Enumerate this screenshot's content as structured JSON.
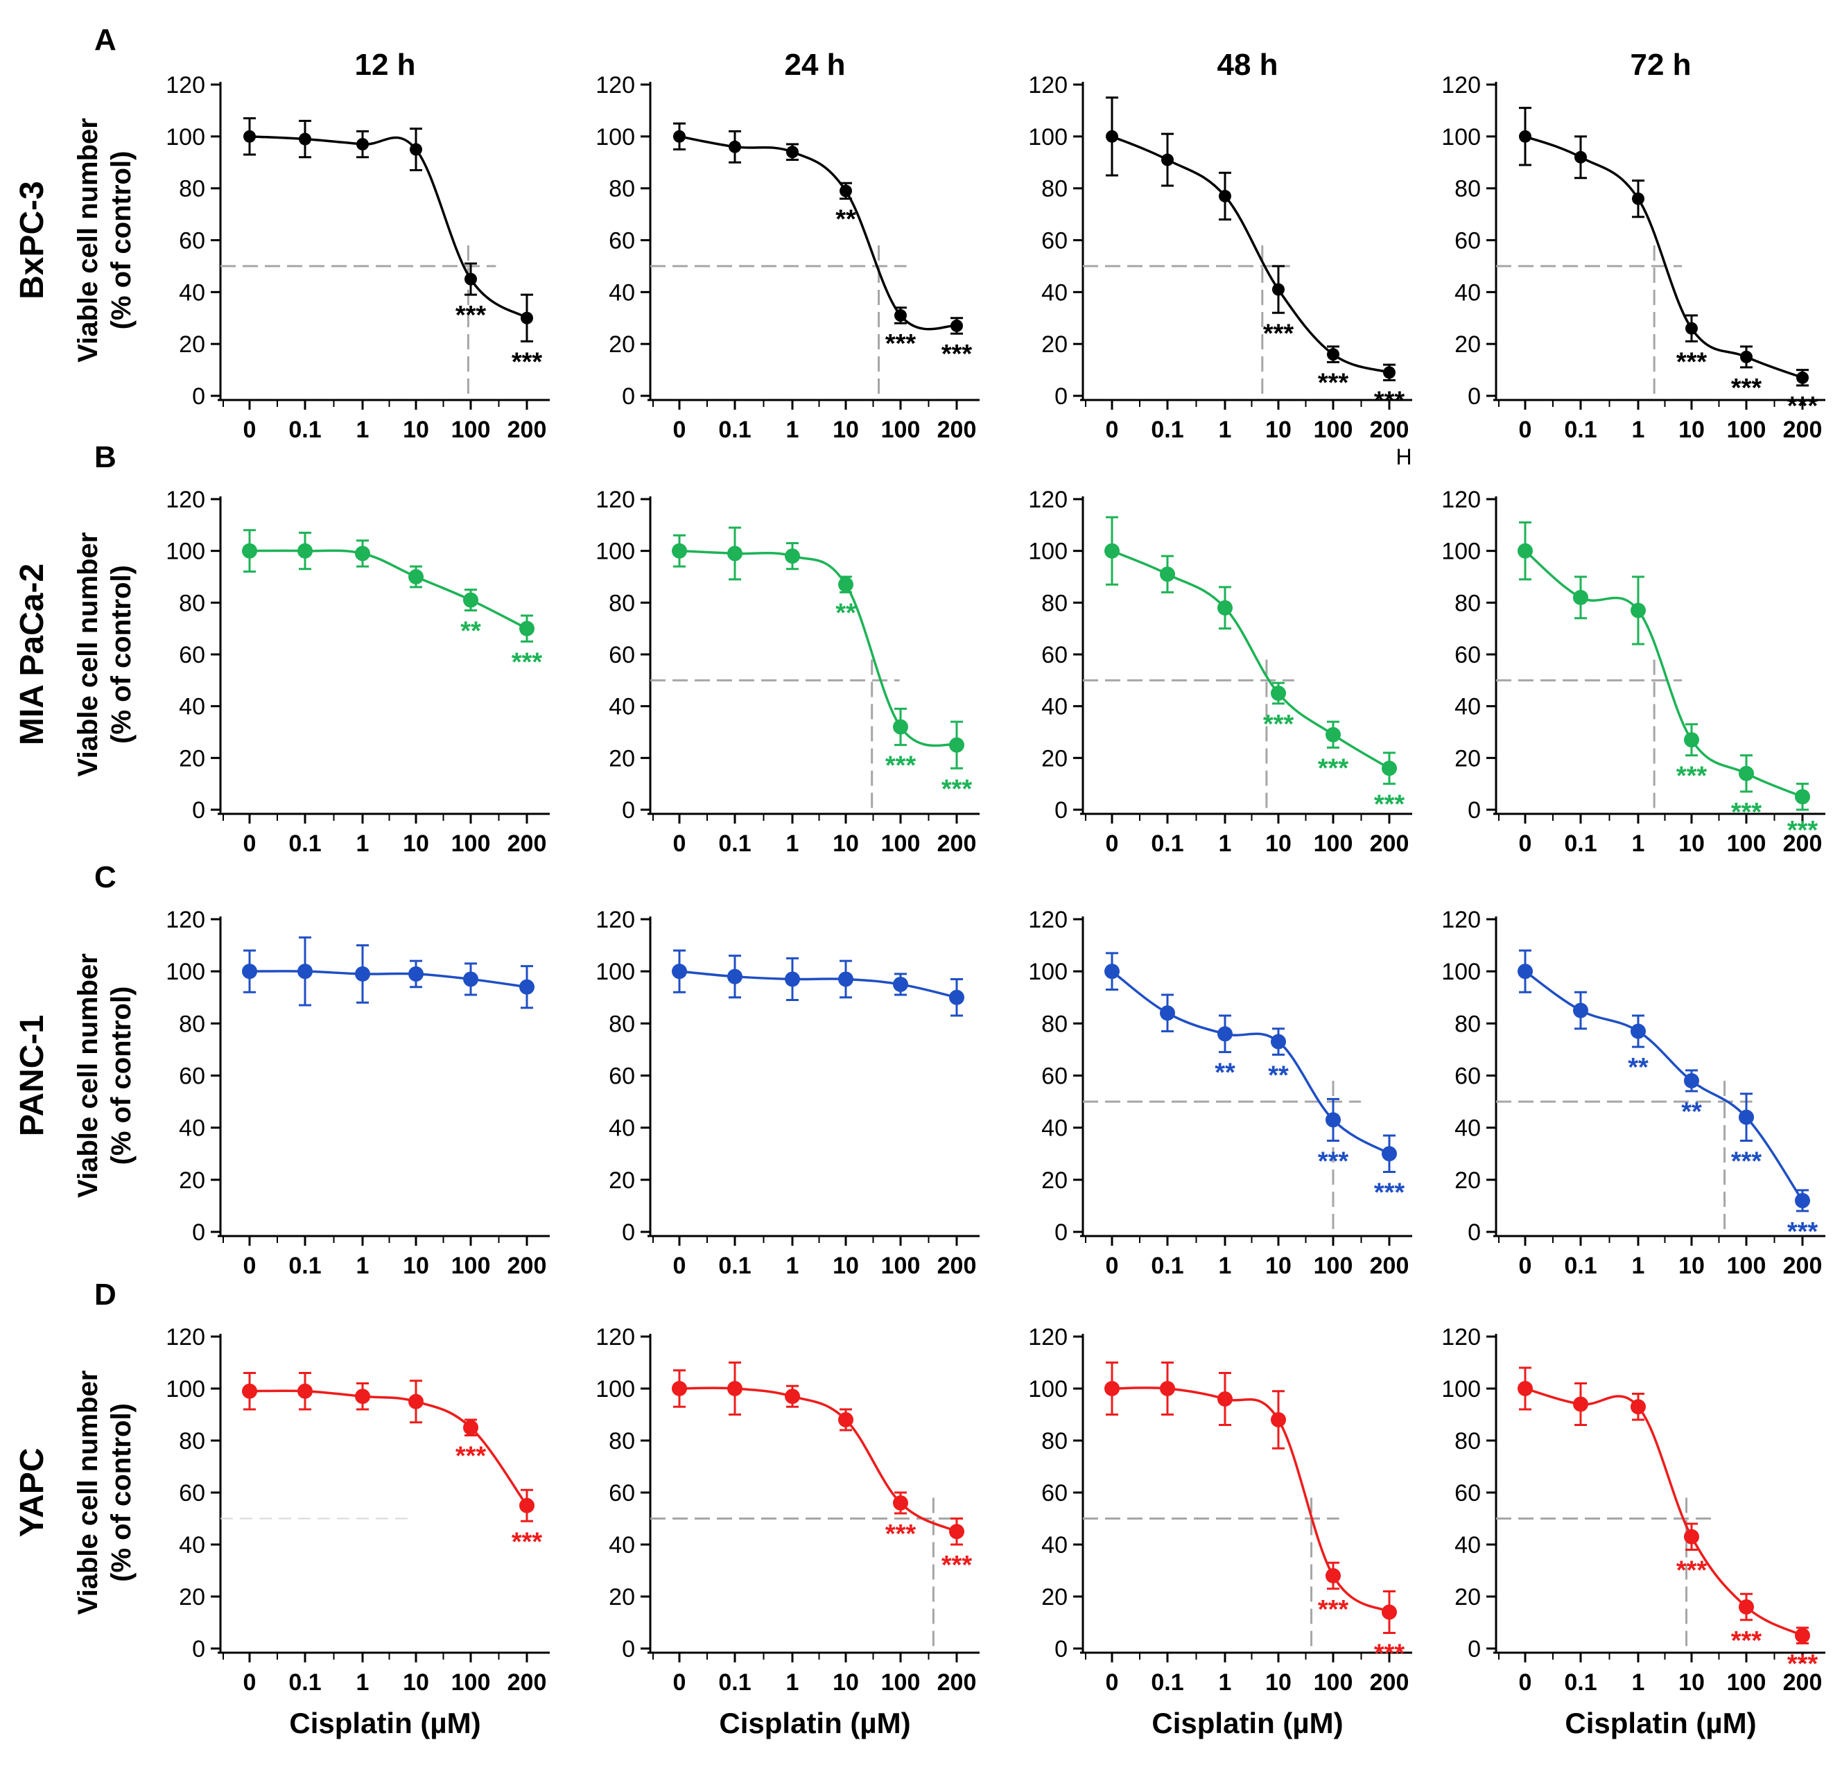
{
  "figure": {
    "x_tick_labels": [
      "0",
      "0.1",
      "1",
      "10",
      "100",
      "200"
    ],
    "y_ticks": [
      0,
      20,
      40,
      60,
      80,
      100,
      120
    ],
    "y_axis_label_line1": "Viable cell number",
    "y_axis_label_line2": "(% of control)",
    "x_axis_label": "Cisplatin (µM)",
    "stray_label": "H",
    "time_points": [
      "12 h",
      "24 h",
      "48 h",
      "72 h"
    ],
    "colors": {
      "BxPC-3": "#000000",
      "MIA PaCa-2": "#1db356",
      "PANC-1": "#1f4fc4",
      "YAPC": "#ee1c1c",
      "reference_line": "#a6a6a6"
    }
  },
  "chart_data": [
    {
      "type": "line",
      "panel": "A",
      "row_label": "BxPC-3",
      "title": "12 h",
      "color": "#000000",
      "categories": [
        "0",
        "0.1",
        "1",
        "10",
        "100",
        "200"
      ],
      "values": [
        100,
        99,
        97,
        95,
        45,
        30
      ],
      "errors": [
        7,
        7,
        5,
        8,
        6,
        9
      ],
      "significance": [
        "",
        "",
        "",
        "",
        "***",
        "***"
      ],
      "ic50_x": 90,
      "xlabel": "",
      "ylabel": "Viable cell number (% of control)",
      "ylim": [
        0,
        120
      ]
    },
    {
      "type": "line",
      "panel": "A",
      "row_label": "BxPC-3",
      "title": "24 h",
      "color": "#000000",
      "categories": [
        "0",
        "0.1",
        "1",
        "10",
        "100",
        "200"
      ],
      "values": [
        100,
        96,
        94,
        79,
        31,
        27
      ],
      "errors": [
        5,
        6,
        3,
        3,
        3,
        3
      ],
      "significance": [
        "",
        "",
        "",
        "**",
        "***",
        "***"
      ],
      "ic50_x": 40,
      "xlabel": "",
      "ylabel": "",
      "ylim": [
        0,
        120
      ]
    },
    {
      "type": "line",
      "panel": "A",
      "row_label": "BxPC-3",
      "title": "48 h",
      "color": "#000000",
      "categories": [
        "0",
        "0.1",
        "1",
        "10",
        "100",
        "200"
      ],
      "values": [
        100,
        91,
        77,
        41,
        16,
        9
      ],
      "errors": [
        15,
        10,
        9,
        9,
        3,
        3
      ],
      "significance": [
        "",
        "",
        "",
        "***",
        "***",
        "***"
      ],
      "ic50_x": 5,
      "xlabel": "",
      "ylabel": "",
      "ylim": [
        0,
        120
      ]
    },
    {
      "type": "line",
      "panel": "A",
      "row_label": "BxPC-3",
      "title": "72 h",
      "color": "#000000",
      "categories": [
        "0",
        "0.1",
        "1",
        "10",
        "100",
        "200"
      ],
      "values": [
        100,
        92,
        76,
        26,
        15,
        7
      ],
      "errors": [
        11,
        8,
        7,
        5,
        4,
        3
      ],
      "significance": [
        "",
        "",
        "",
        "***",
        "***",
        "***"
      ],
      "ic50_x": 2,
      "xlabel": "",
      "ylabel": "",
      "ylim": [
        0,
        120
      ]
    },
    {
      "type": "line",
      "panel": "B",
      "row_label": "MIA PaCa-2",
      "title": "",
      "color": "#1db356",
      "categories": [
        "0",
        "0.1",
        "1",
        "10",
        "100",
        "200"
      ],
      "values": [
        100,
        100,
        99,
        90,
        81,
        70
      ],
      "errors": [
        8,
        7,
        5,
        4,
        4,
        5
      ],
      "significance": [
        "",
        "",
        "",
        "",
        "**",
        "***"
      ],
      "ic50_x": null,
      "xlabel": "",
      "ylabel": "Viable cell number (% of control)",
      "ylim": [
        0,
        120
      ]
    },
    {
      "type": "line",
      "panel": "B",
      "row_label": "MIA PaCa-2",
      "title": "",
      "color": "#1db356",
      "categories": [
        "0",
        "0.1",
        "1",
        "10",
        "100",
        "200"
      ],
      "values": [
        100,
        99,
        98,
        87,
        32,
        25
      ],
      "errors": [
        6,
        10,
        5,
        3,
        7,
        9
      ],
      "significance": [
        "",
        "",
        "",
        "**",
        "***",
        "***"
      ],
      "ic50_x": 30,
      "xlabel": "",
      "ylabel": "",
      "ylim": [
        0,
        120
      ]
    },
    {
      "type": "line",
      "panel": "B",
      "row_label": "MIA PaCa-2",
      "title": "",
      "color": "#1db356",
      "categories": [
        "0",
        "0.1",
        "1",
        "10",
        "100",
        "200"
      ],
      "values": [
        100,
        91,
        78,
        45,
        29,
        16
      ],
      "errors": [
        13,
        7,
        8,
        4,
        5,
        6
      ],
      "significance": [
        "",
        "",
        "",
        "***",
        "***",
        "***"
      ],
      "ic50_x": 6,
      "xlabel": "",
      "ylabel": "",
      "ylim": [
        0,
        120
      ]
    },
    {
      "type": "line",
      "panel": "B",
      "row_label": "MIA PaCa-2",
      "title": "",
      "color": "#1db356",
      "categories": [
        "0",
        "0.1",
        "1",
        "10",
        "100",
        "200"
      ],
      "values": [
        100,
        82,
        77,
        27,
        14,
        5
      ],
      "errors": [
        11,
        8,
        13,
        6,
        7,
        5
      ],
      "significance": [
        "",
        "",
        "",
        "***",
        "***",
        "***"
      ],
      "ic50_x": 2,
      "xlabel": "",
      "ylabel": "",
      "ylim": [
        0,
        120
      ]
    },
    {
      "type": "line",
      "panel": "C",
      "row_label": "PANC-1",
      "title": "",
      "color": "#1f4fc4",
      "categories": [
        "0",
        "0.1",
        "1",
        "10",
        "100",
        "200"
      ],
      "values": [
        100,
        100,
        99,
        99,
        97,
        94
      ],
      "errors": [
        8,
        13,
        11,
        5,
        6,
        8
      ],
      "significance": [
        "",
        "",
        "",
        "",
        "",
        ""
      ],
      "ic50_x": null,
      "xlabel": "",
      "ylabel": "Viable cell number (% of control)",
      "ylim": [
        0,
        120
      ]
    },
    {
      "type": "line",
      "panel": "C",
      "row_label": "PANC-1",
      "title": "",
      "color": "#1f4fc4",
      "categories": [
        "0",
        "0.1",
        "1",
        "10",
        "100",
        "200"
      ],
      "values": [
        100,
        98,
        97,
        97,
        95,
        90
      ],
      "errors": [
        8,
        8,
        8,
        7,
        4,
        7
      ],
      "significance": [
        "",
        "",
        "",
        "",
        "",
        ""
      ],
      "ic50_x": null,
      "xlabel": "",
      "ylabel": "",
      "ylim": [
        0,
        120
      ]
    },
    {
      "type": "line",
      "panel": "C",
      "row_label": "PANC-1",
      "title": "",
      "color": "#1f4fc4",
      "categories": [
        "0",
        "0.1",
        "1",
        "10",
        "100",
        "200"
      ],
      "values": [
        100,
        84,
        76,
        73,
        43,
        30
      ],
      "errors": [
        7,
        7,
        7,
        5,
        8,
        7
      ],
      "significance": [
        "",
        "",
        "**",
        "**",
        "***",
        "***"
      ],
      "ic50_x": 100,
      "xlabel": "",
      "ylabel": "",
      "ylim": [
        0,
        120
      ]
    },
    {
      "type": "line",
      "panel": "C",
      "row_label": "PANC-1",
      "title": "",
      "color": "#1f4fc4",
      "categories": [
        "0",
        "0.1",
        "1",
        "10",
        "100",
        "200"
      ],
      "values": [
        100,
        85,
        77,
        58,
        44,
        12
      ],
      "errors": [
        8,
        7,
        6,
        4,
        9,
        4
      ],
      "significance": [
        "",
        "",
        "**",
        "**",
        "***",
        "***"
      ],
      "ic50_x": 40,
      "xlabel": "",
      "ylabel": "",
      "ylim": [
        0,
        120
      ]
    },
    {
      "type": "line",
      "panel": "D",
      "row_label": "YAPC",
      "title": "",
      "color": "#ee1c1c",
      "categories": [
        "0",
        "0.1",
        "1",
        "10",
        "100",
        "200"
      ],
      "values": [
        99,
        99,
        97,
        95,
        85,
        55
      ],
      "errors": [
        7,
        7,
        5,
        8,
        3,
        6
      ],
      "significance": [
        "",
        "",
        "",
        "",
        "***",
        "***"
      ],
      "ic50_x": null,
      "xlabel": "Cisplatin (µM)",
      "ylabel": "Viable cell number (% of control)",
      "ylim": [
        0,
        120
      ]
    },
    {
      "type": "line",
      "panel": "D",
      "row_label": "YAPC",
      "title": "",
      "color": "#ee1c1c",
      "categories": [
        "0",
        "0.1",
        "1",
        "10",
        "100",
        "200"
      ],
      "values": [
        100,
        100,
        97,
        88,
        56,
        45
      ],
      "errors": [
        7,
        10,
        4,
        4,
        4,
        5
      ],
      "significance": [
        "",
        "",
        "",
        "",
        "***",
        "***"
      ],
      "ic50_x": 150,
      "xlabel": "Cisplatin (µM)",
      "ylabel": "",
      "ylim": [
        0,
        120
      ]
    },
    {
      "type": "line",
      "panel": "D",
      "row_label": "YAPC",
      "title": "",
      "color": "#ee1c1c",
      "categories": [
        "0",
        "0.1",
        "1",
        "10",
        "100",
        "200"
      ],
      "values": [
        100,
        100,
        96,
        88,
        28,
        14
      ],
      "errors": [
        10,
        10,
        10,
        11,
        5,
        8
      ],
      "significance": [
        "",
        "",
        "",
        "",
        "***",
        "***"
      ],
      "ic50_x": 40,
      "xlabel": "Cisplatin (µM)",
      "ylabel": "",
      "ylim": [
        0,
        120
      ]
    },
    {
      "type": "line",
      "panel": "D",
      "row_label": "YAPC",
      "title": "",
      "color": "#ee1c1c",
      "categories": [
        "0",
        "0.1",
        "1",
        "10",
        "100",
        "200"
      ],
      "values": [
        100,
        94,
        93,
        43,
        16,
        5
      ],
      "errors": [
        8,
        8,
        5,
        5,
        5,
        3
      ],
      "significance": [
        "",
        "",
        "",
        "***",
        "***",
        "***"
      ],
      "ic50_x": 8,
      "xlabel": "Cisplatin (µM)",
      "ylabel": "",
      "ylim": [
        0,
        120
      ]
    }
  ]
}
